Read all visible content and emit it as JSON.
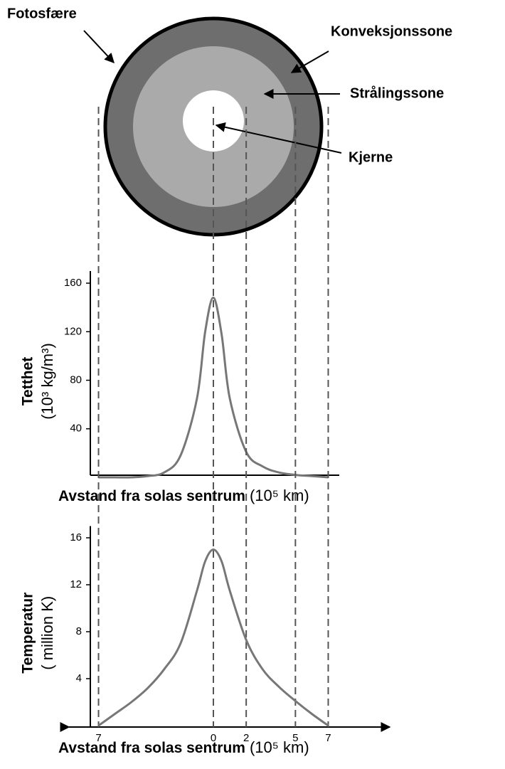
{
  "diagram": {
    "labels": [
      "Fotosfære",
      "Konveksjonssone",
      "Strålingssone",
      "Kjerne"
    ]
  },
  "chart_data": [
    {
      "type": "line",
      "ylabel": [
        "Tetthet",
        "(10³ kg/m³)"
      ],
      "xlabel": "Avstand fra solas sentrum",
      "xlabel_unit": "(10⁵ km)",
      "x": [
        -7,
        -6,
        -5,
        -4,
        -3,
        -2,
        -1,
        -0.5,
        0,
        0.5,
        1,
        2,
        3,
        4,
        5,
        6,
        7
      ],
      "series": [
        {
          "color": "#777777",
          "values": [
            0,
            0,
            0,
            1,
            4,
            18,
            65,
            120,
            148,
            118,
            65,
            21,
            9,
            4,
            2,
            1,
            0
          ]
        }
      ],
      "xlim": [
        -7.5,
        7.5
      ],
      "ylim": [
        0,
        170
      ],
      "yticks": [
        40,
        80,
        120,
        160
      ]
    },
    {
      "type": "line",
      "ylabel": [
        "Temperatur",
        "( million K)"
      ],
      "xlabel": "Avstand fra solas sentrum",
      "xlabel_unit": "(10⁵ km)",
      "x": [
        -7,
        -6,
        -5,
        -4,
        -3,
        -2,
        -1,
        -0.5,
        0,
        0.5,
        1,
        2,
        3,
        4,
        5,
        6,
        7
      ],
      "series": [
        {
          "color": "#777777",
          "values": [
            0,
            1,
            2,
            3.2,
            4.8,
            7,
            11.5,
            14,
            15,
            14,
            11.5,
            7.3,
            4.8,
            3.3,
            2.1,
            1,
            0
          ]
        }
      ],
      "xlim": [
        -7.5,
        7.5
      ],
      "ylim": [
        0,
        17
      ],
      "yticks": [
        4,
        8,
        12,
        16
      ],
      "xticks": [
        {
          "value": -7,
          "label": "7"
        },
        0,
        2,
        5,
        7
      ]
    }
  ]
}
